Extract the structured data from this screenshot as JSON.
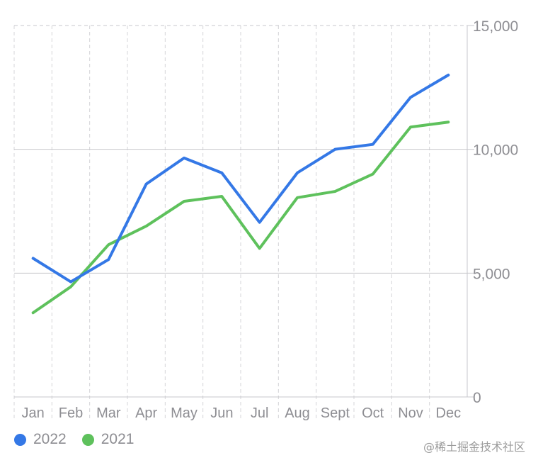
{
  "chart_data": {
    "type": "line",
    "categories": [
      "Jan",
      "Feb",
      "Mar",
      "Apr",
      "May",
      "Jun",
      "Jul",
      "Aug",
      "Sept",
      "Oct",
      "Nov",
      "Dec"
    ],
    "series": [
      {
        "name": "2022",
        "color": "#3478e6",
        "values": [
          5600,
          4650,
          5550,
          8600,
          9650,
          9050,
          7050,
          9050,
          10000,
          10200,
          12100,
          13000
        ]
      },
      {
        "name": "2021",
        "color": "#5ec15c",
        "values": [
          3400,
          4450,
          6150,
          6900,
          7900,
          8100,
          6000,
          8050,
          8300,
          9000,
          10900,
          11100
        ]
      }
    ],
    "ylim": [
      0,
      15000
    ],
    "yticks": [
      "0",
      "5,000",
      "10,000",
      "15,000"
    ],
    "ytick_values": [
      0,
      5000,
      10000,
      15000
    ],
    "y_axis_side": "right",
    "grid": true,
    "legend_position": "bottom-left"
  },
  "watermark": "@稀土掘金技术社区"
}
